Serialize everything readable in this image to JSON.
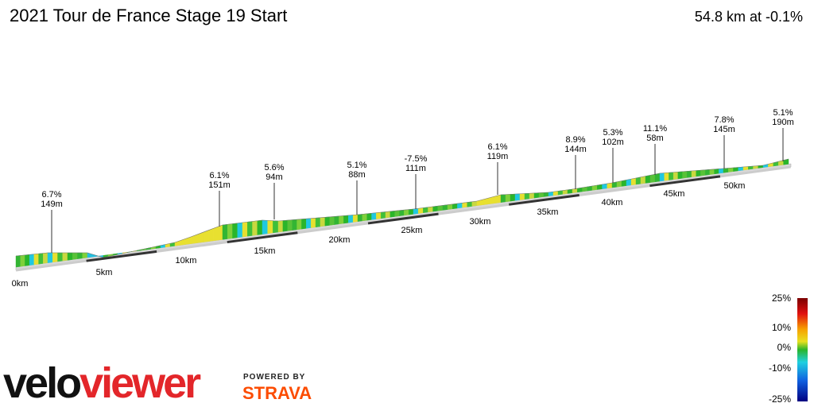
{
  "header": {
    "title": "2021 Tour de France Stage 19 Start",
    "summary": "54.8 km at -0.1%"
  },
  "annotations": [
    {
      "grade": "6.7%",
      "elevation": "149m"
    },
    {
      "grade": "6.1%",
      "elevation": "151m"
    },
    {
      "grade": "5.6%",
      "elevation": "94m"
    },
    {
      "grade": "5.1%",
      "elevation": "88m"
    },
    {
      "grade": "-7.5%",
      "elevation": "111m"
    },
    {
      "grade": "6.1%",
      "elevation": "119m"
    },
    {
      "grade": "8.9%",
      "elevation": "144m"
    },
    {
      "grade": "5.3%",
      "elevation": "102m"
    },
    {
      "grade": "11.1%",
      "elevation": "58m"
    },
    {
      "grade": "7.8%",
      "elevation": "145m"
    },
    {
      "grade": "5.1%",
      "elevation": "190m"
    }
  ],
  "distance_labels": [
    "0km",
    "5km",
    "10km",
    "15km",
    "20km",
    "25km",
    "30km",
    "35km",
    "40km",
    "45km",
    "50km"
  ],
  "legend": {
    "ticks": [
      "25%",
      "10%",
      "0%",
      "-10%",
      "-25%"
    ]
  },
  "branding": {
    "logo_left": "velo",
    "logo_right": "viewer",
    "powered": "POWERED BY",
    "partner": "STRAVA"
  }
}
